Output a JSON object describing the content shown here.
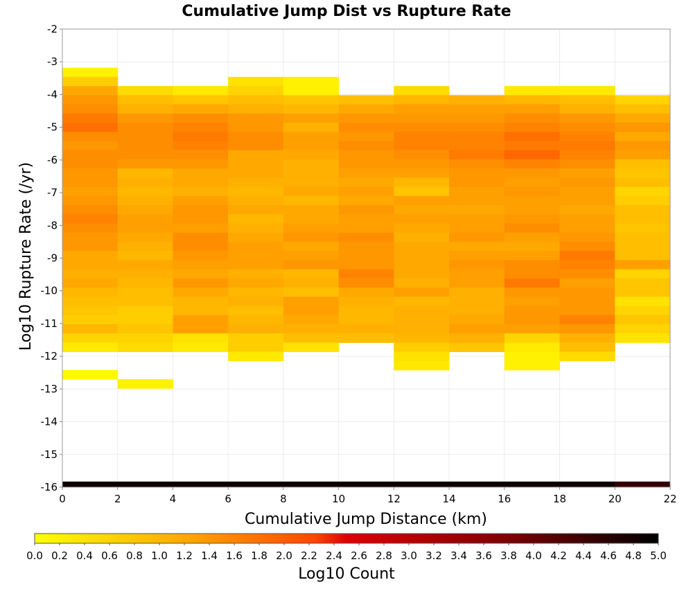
{
  "chart_data": {
    "type": "heatmap",
    "title": "Cumulative Jump Dist vs Rupture Rate",
    "xlabel": "Cumulative Jump Distance (km)",
    "ylabel": "Log10 Rupture Rate (/yr)",
    "xlim": [
      0,
      22
    ],
    "ylim": [
      -16,
      -2
    ],
    "x_ticks": [
      "0",
      "2",
      "4",
      "6",
      "8",
      "10",
      "12",
      "14",
      "16",
      "18",
      "20",
      "22"
    ],
    "y_ticks": [
      "-2",
      "-3",
      "-4",
      "-5",
      "-6",
      "-7",
      "-8",
      "-9",
      "-10",
      "-11",
      "-12",
      "-13",
      "-14",
      "-15",
      "-16"
    ],
    "x_bin_width": 2,
    "y_bin_height": 0.28,
    "x_bin_starts": [
      0,
      2,
      4,
      6,
      8,
      10,
      12,
      14,
      16,
      18,
      20
    ],
    "y_bin_centers": [
      -3.32,
      -3.6,
      -3.88,
      -4.16,
      -4.44,
      -4.72,
      -5.0,
      -5.28,
      -5.56,
      -5.84,
      -6.12,
      -6.4,
      -6.68,
      -6.96,
      -7.24,
      -7.52,
      -7.8,
      -8.08,
      -8.36,
      -8.64,
      -8.92,
      -9.2,
      -9.48,
      -9.76,
      -10.04,
      -10.32,
      -10.6,
      -10.88,
      -11.16,
      -11.44,
      -11.72,
      -12.0,
      -12.28,
      -12.56,
      -12.84
    ],
    "values": [
      [
        0.2,
        0.7,
        1.2,
        1.4,
        1.5,
        1.7,
        1.8,
        1.5,
        1.4,
        1.5,
        1.5,
        1.4,
        1.4,
        1.3,
        1.4,
        1.5,
        1.6,
        1.5,
        1.4,
        1.4,
        1.2,
        1.2,
        1.1,
        1.2,
        1.0,
        0.9,
        0.8,
        0.7,
        1.0,
        0.6,
        0.3,
        null,
        null,
        0.1,
        null
      ],
      [
        null,
        null,
        0.5,
        0.9,
        1.1,
        1.4,
        1.5,
        1.5,
        1.5,
        1.5,
        1.4,
        1.0,
        1.1,
        1.0,
        1.1,
        1.2,
        1.3,
        1.3,
        1.2,
        1.1,
        1.0,
        1.2,
        1.1,
        1.0,
        0.9,
        0.9,
        0.7,
        0.7,
        0.8,
        0.6,
        0.5,
        null,
        null,
        null,
        0.2
      ],
      [
        null,
        null,
        0.3,
        0.8,
        1.2,
        1.5,
        1.6,
        1.7,
        1.6,
        1.5,
        1.4,
        1.2,
        1.2,
        1.1,
        1.3,
        1.4,
        1.4,
        1.3,
        1.5,
        1.5,
        1.4,
        1.3,
        1.2,
        1.4,
        1.2,
        1.0,
        1.0,
        1.3,
        1.3,
        0.4,
        0.3,
        null,
        null,
        null,
        null
      ],
      [
        null,
        0.4,
        0.6,
        0.9,
        1.1,
        1.4,
        1.4,
        1.5,
        1.5,
        1.2,
        1.2,
        1.2,
        1.1,
        1.0,
        1.1,
        1.2,
        1.0,
        1.1,
        1.2,
        1.3,
        1.3,
        1.3,
        1.1,
        1.2,
        1.0,
        1.1,
        0.9,
        1.0,
        1.1,
        0.7,
        0.7,
        0.3,
        null,
        null,
        null
      ],
      [
        null,
        0.2,
        0.2,
        0.8,
        1.0,
        1.3,
        1.1,
        1.3,
        1.3,
        1.2,
        1.1,
        1.1,
        1.1,
        1.2,
        1.0,
        1.2,
        1.2,
        1.3,
        1.4,
        1.2,
        1.3,
        1.4,
        1.0,
        1.1,
        0.9,
        1.3,
        1.3,
        1.2,
        1.1,
        0.9,
        0.4,
        null,
        null,
        null,
        null
      ],
      [
        null,
        null,
        null,
        0.9,
        1.2,
        1.4,
        1.5,
        1.4,
        1.5,
        1.4,
        1.4,
        1.3,
        1.2,
        1.3,
        1.2,
        1.4,
        1.3,
        1.3,
        1.5,
        1.4,
        1.4,
        1.4,
        1.6,
        1.5,
        1.2,
        1.1,
        1.0,
        1.0,
        1.1,
        0.9,
        null,
        null,
        null,
        null,
        null
      ],
      [
        null,
        null,
        0.5,
        1.0,
        1.3,
        1.4,
        1.5,
        1.6,
        1.6,
        1.5,
        1.4,
        1.3,
        1.0,
        0.8,
        1.3,
        1.2,
        1.3,
        1.2,
        1.1,
        1.2,
        1.2,
        1.2,
        1.2,
        1.1,
        1.3,
        1.0,
        1.1,
        1.1,
        1.1,
        1.0,
        0.7,
        0.4,
        0.3,
        null,
        null
      ],
      [
        null,
        null,
        null,
        1.1,
        1.3,
        1.4,
        1.5,
        1.6,
        1.6,
        1.7,
        1.5,
        1.4,
        1.4,
        1.3,
        1.3,
        1.2,
        1.3,
        1.3,
        1.4,
        1.2,
        1.3,
        1.4,
        1.3,
        1.3,
        1.1,
        1.1,
        1.1,
        1.2,
        1.3,
        1.1,
        0.8,
        null,
        null,
        null,
        null
      ],
      [
        null,
        null,
        0.3,
        1.0,
        1.3,
        1.5,
        1.6,
        1.8,
        1.7,
        1.9,
        1.6,
        1.4,
        1.3,
        1.4,
        1.3,
        1.3,
        1.4,
        1.5,
        1.3,
        1.2,
        1.3,
        1.5,
        1.5,
        1.7,
        1.4,
        1.3,
        1.4,
        1.4,
        1.3,
        0.6,
        0.3,
        0.2,
        0.2,
        null,
        null
      ],
      [
        null,
        null,
        0.3,
        0.9,
        1.1,
        1.4,
        1.5,
        1.6,
        1.7,
        1.6,
        1.5,
        1.3,
        1.4,
        1.3,
        1.3,
        1.2,
        1.3,
        1.3,
        1.4,
        1.5,
        1.7,
        1.6,
        1.5,
        1.3,
        1.4,
        1.4,
        1.4,
        1.6,
        1.4,
        1.1,
        0.9,
        0.5,
        null,
        null,
        null
      ],
      [
        null,
        null,
        null,
        0.6,
        0.9,
        1.2,
        1.4,
        1.2,
        1.4,
        1.3,
        0.9,
        0.8,
        0.9,
        0.6,
        0.7,
        0.9,
        0.9,
        0.8,
        0.9,
        0.9,
        0.9,
        1.3,
        0.6,
        0.8,
        0.8,
        0.4,
        0.6,
        0.8,
        0.6,
        0.4,
        null,
        null,
        null,
        null,
        null
      ]
    ],
    "bottom_row": {
      "y_center": -15.93,
      "values": [
        4.9,
        4.9,
        4.9,
        4.9,
        4.9,
        4.9,
        4.9,
        4.9,
        4.9,
        4.9,
        4.5
      ]
    },
    "colorbar": {
      "label": "Log10 Count",
      "min": 0.0,
      "max": 5.0,
      "ticks": [
        "0.0",
        "0.2",
        "0.4",
        "0.6",
        "0.8",
        "1.0",
        "1.2",
        "1.4",
        "1.6",
        "1.8",
        "2.0",
        "2.2",
        "2.4",
        "2.6",
        "2.8",
        "3.0",
        "3.2",
        "3.4",
        "3.6",
        "3.8",
        "4.0",
        "4.2",
        "4.4",
        "4.6",
        "4.8",
        "5.0"
      ],
      "colors": [
        "#ffff00",
        "#ffa500",
        "#ff4500",
        "#e00000",
        "#800000",
        "#000000"
      ],
      "color_stops": [
        0.0,
        0.25,
        0.45,
        0.5,
        0.75,
        1.0
      ]
    },
    "grid": true,
    "legend": "bottom"
  }
}
